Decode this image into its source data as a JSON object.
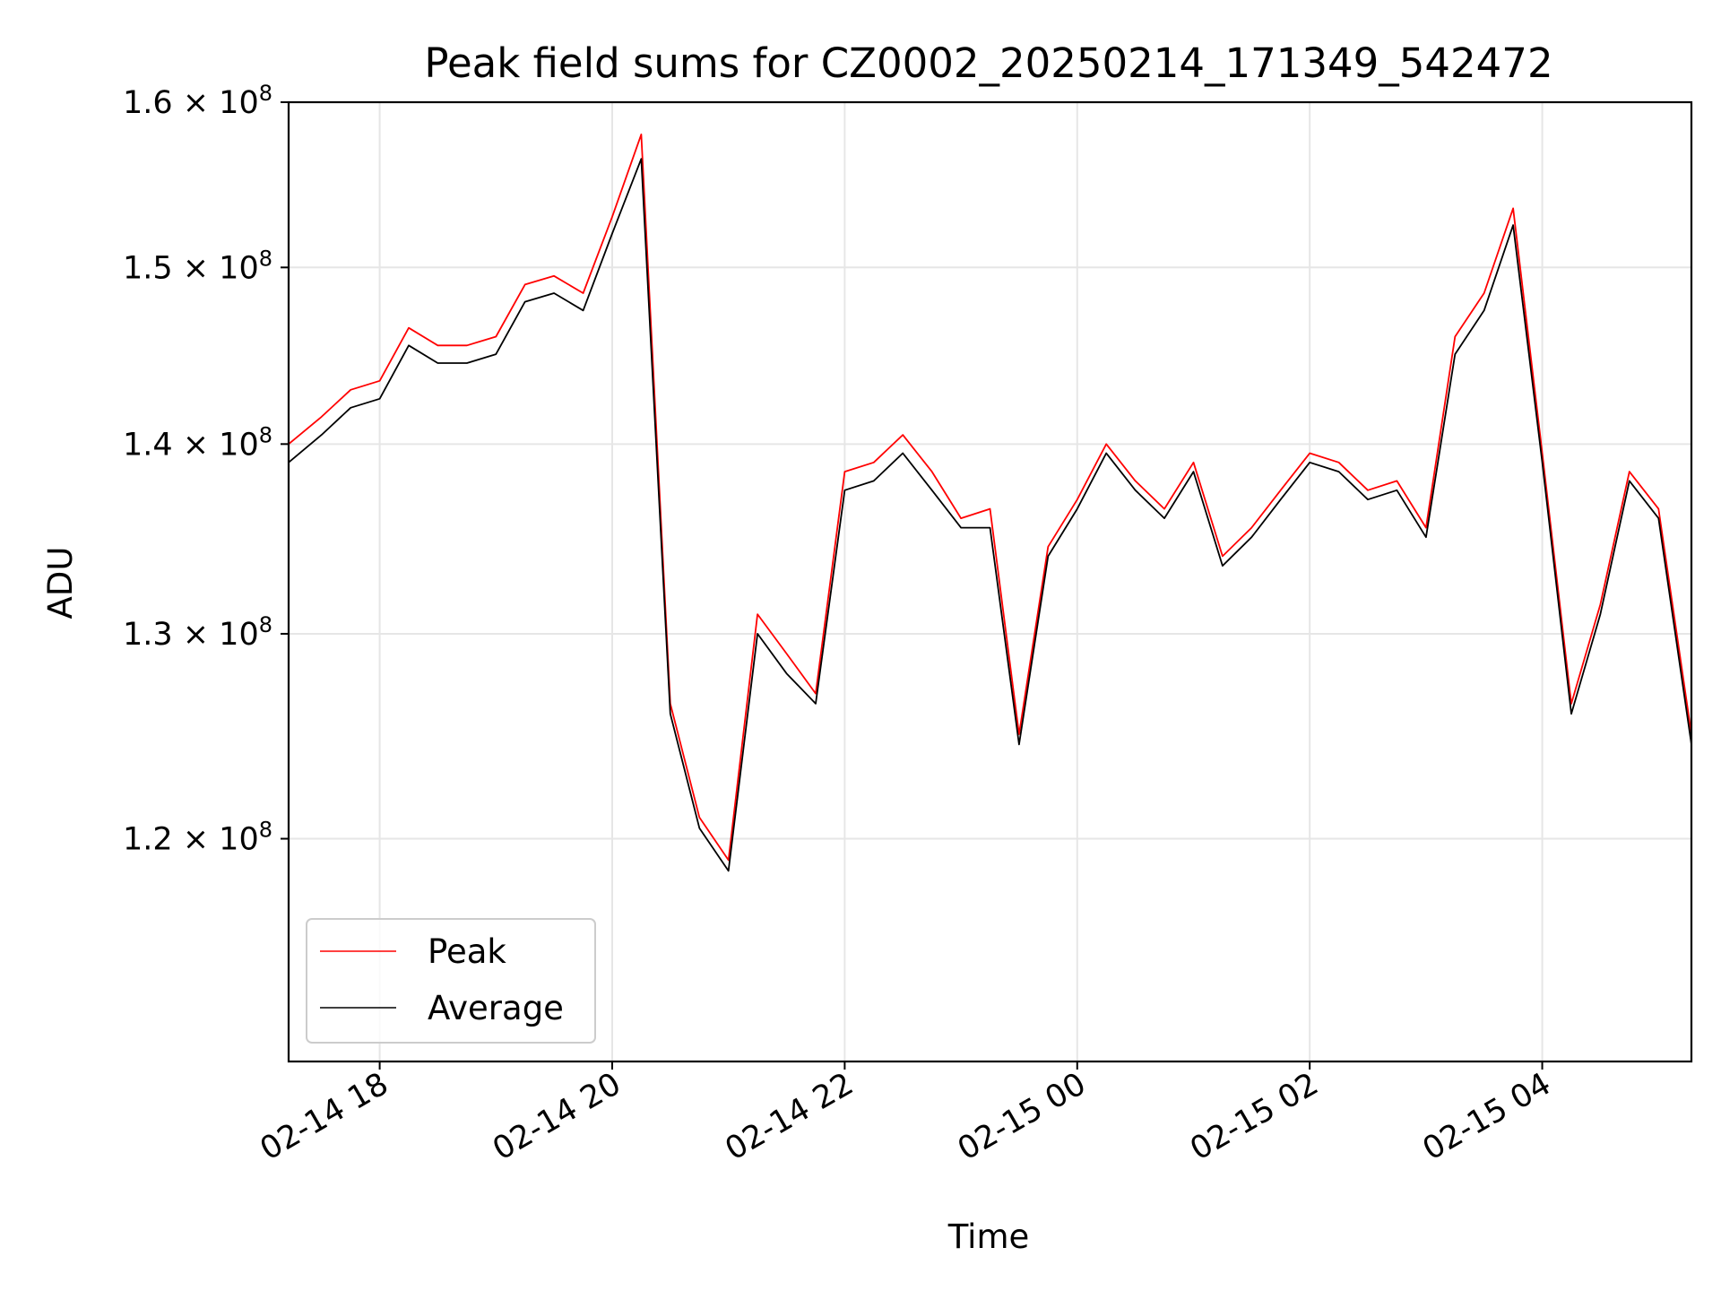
{
  "chart_data": {
    "type": "line",
    "title": "Peak field sums for CZ0002_20250214_171349_542472",
    "xlabel": "Time",
    "ylabel": "ADU",
    "x_range": [
      "2025-02-14 17:13",
      "2025-02-15 05:17"
    ],
    "ylim": [
      110000000,
      160000000
    ],
    "y_scale": "log",
    "grid": true,
    "legend_position": "lower-left",
    "x_ticks": [
      {
        "time": "2025-02-14 18:00",
        "label": "02-14 18"
      },
      {
        "time": "2025-02-14 20:00",
        "label": "02-14 20"
      },
      {
        "time": "2025-02-14 22:00",
        "label": "02-14 22"
      },
      {
        "time": "2025-02-15 00:00",
        "label": "02-15 00"
      },
      {
        "time": "2025-02-15 02:00",
        "label": "02-15 02"
      },
      {
        "time": "2025-02-15 04:00",
        "label": "02-15 04"
      }
    ],
    "y_ticks": [
      {
        "value": 120000000,
        "mantissa": "1.2",
        "base": "10",
        "exponent": "8"
      },
      {
        "value": 130000000,
        "mantissa": "1.3",
        "base": "10",
        "exponent": "8"
      },
      {
        "value": 140000000,
        "mantissa": "1.4",
        "base": "10",
        "exponent": "8"
      },
      {
        "value": 150000000,
        "mantissa": "1.5",
        "base": "10",
        "exponent": "8"
      },
      {
        "value": 160000000,
        "mantissa": "1.6",
        "base": "10",
        "exponent": "8"
      }
    ],
    "x": [
      "2025-02-14 17:13",
      "2025-02-14 17:30",
      "2025-02-14 17:45",
      "2025-02-14 18:00",
      "2025-02-14 18:15",
      "2025-02-14 18:30",
      "2025-02-14 18:45",
      "2025-02-14 19:00",
      "2025-02-14 19:15",
      "2025-02-14 19:30",
      "2025-02-14 19:45",
      "2025-02-14 20:00",
      "2025-02-14 20:15",
      "2025-02-14 20:30",
      "2025-02-14 20:45",
      "2025-02-14 21:00",
      "2025-02-14 21:15",
      "2025-02-14 21:30",
      "2025-02-14 21:45",
      "2025-02-14 22:00",
      "2025-02-14 22:15",
      "2025-02-14 22:30",
      "2025-02-14 22:45",
      "2025-02-14 23:00",
      "2025-02-14 23:15",
      "2025-02-14 23:30",
      "2025-02-14 23:45",
      "2025-02-15 00:00",
      "2025-02-15 00:15",
      "2025-02-15 00:30",
      "2025-02-15 00:45",
      "2025-02-15 01:00",
      "2025-02-15 01:15",
      "2025-02-15 01:30",
      "2025-02-15 01:45",
      "2025-02-15 02:00",
      "2025-02-15 02:15",
      "2025-02-15 02:30",
      "2025-02-15 02:45",
      "2025-02-15 03:00",
      "2025-02-15 03:15",
      "2025-02-15 03:30",
      "2025-02-15 03:45",
      "2025-02-15 04:00",
      "2025-02-15 04:15",
      "2025-02-15 04:30",
      "2025-02-15 04:45",
      "2025-02-15 05:00",
      "2025-02-15 05:17"
    ],
    "series": [
      {
        "name": "Peak",
        "color": "#ff0000",
        "values": [
          140000000,
          141500000,
          143000000,
          143500000,
          146500000,
          145500000,
          145500000,
          146000000,
          149000000,
          149500000,
          148500000,
          153000000,
          158000000,
          126500000,
          121000000,
          119000000,
          131000000,
          129000000,
          127000000,
          138500000,
          139000000,
          140500000,
          138500000,
          136000000,
          136500000,
          125000000,
          134500000,
          137000000,
          140000000,
          138000000,
          136500000,
          139000000,
          134000000,
          135500000,
          137500000,
          139500000,
          139000000,
          137500000,
          138000000,
          135500000,
          146000000,
          148500000,
          153500000,
          139500000,
          126500000,
          131500000,
          138500000,
          136500000,
          125000000
        ]
      },
      {
        "name": "Average",
        "color": "#000000",
        "values": [
          139000000,
          140500000,
          142000000,
          142500000,
          145500000,
          144500000,
          144500000,
          145000000,
          148000000,
          148500000,
          147500000,
          152000000,
          156500000,
          126000000,
          120500000,
          118500000,
          130000000,
          128000000,
          126500000,
          137500000,
          138000000,
          139500000,
          137500000,
          135500000,
          135500000,
          124500000,
          134000000,
          136500000,
          139500000,
          137500000,
          136000000,
          138500000,
          133500000,
          135000000,
          137000000,
          139000000,
          138500000,
          137000000,
          137500000,
          135000000,
          145000000,
          147500000,
          152500000,
          139000000,
          126000000,
          131000000,
          138000000,
          136000000,
          124500000
        ]
      }
    ]
  }
}
